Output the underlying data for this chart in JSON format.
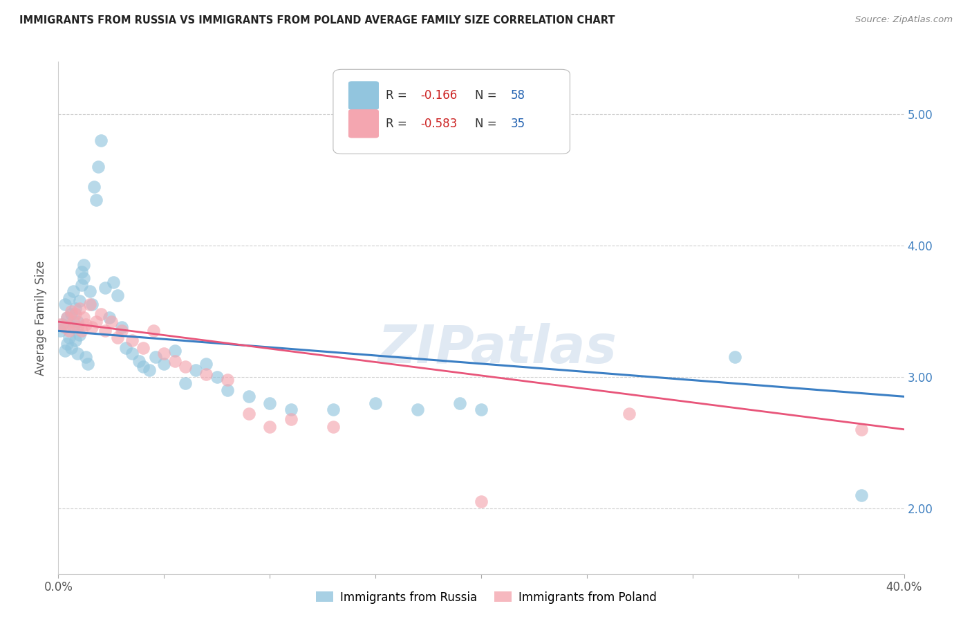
{
  "title": "IMMIGRANTS FROM RUSSIA VS IMMIGRANTS FROM POLAND AVERAGE FAMILY SIZE CORRELATION CHART",
  "source": "Source: ZipAtlas.com",
  "ylabel": "Average Family Size",
  "xlim": [
    0.0,
    0.4
  ],
  "ylim": [
    1.5,
    5.4
  ],
  "yticks": [
    2.0,
    3.0,
    4.0,
    5.0
  ],
  "xticks": [
    0.0,
    0.05,
    0.1,
    0.15,
    0.2,
    0.25,
    0.3,
    0.35,
    0.4
  ],
  "russia_R": "-0.166",
  "russia_N": "58",
  "poland_R": "-0.583",
  "poland_N": "35",
  "russia_color": "#92c5de",
  "poland_color": "#f4a6b0",
  "russia_line_color": "#3b7fc4",
  "poland_line_color": "#e8557a",
  "background_color": "#ffffff",
  "grid_color": "#d0d0d0",
  "russia_x": [
    0.001,
    0.002,
    0.003,
    0.003,
    0.004,
    0.004,
    0.005,
    0.005,
    0.006,
    0.006,
    0.007,
    0.007,
    0.008,
    0.008,
    0.009,
    0.009,
    0.01,
    0.01,
    0.011,
    0.011,
    0.012,
    0.012,
    0.013,
    0.014,
    0.015,
    0.016,
    0.017,
    0.018,
    0.019,
    0.02,
    0.022,
    0.024,
    0.026,
    0.028,
    0.03,
    0.032,
    0.035,
    0.038,
    0.04,
    0.043,
    0.046,
    0.05,
    0.055,
    0.06,
    0.065,
    0.07,
    0.075,
    0.08,
    0.09,
    0.1,
    0.11,
    0.13,
    0.15,
    0.17,
    0.19,
    0.2,
    0.32,
    0.38
  ],
  "russia_y": [
    3.35,
    3.4,
    3.2,
    3.55,
    3.25,
    3.45,
    3.3,
    3.6,
    3.22,
    3.48,
    3.38,
    3.65,
    3.28,
    3.52,
    3.18,
    3.42,
    3.32,
    3.58,
    3.8,
    3.7,
    3.75,
    3.85,
    3.15,
    3.1,
    3.65,
    3.55,
    4.45,
    4.35,
    4.6,
    4.8,
    3.68,
    3.45,
    3.72,
    3.62,
    3.38,
    3.22,
    3.18,
    3.12,
    3.08,
    3.05,
    3.15,
    3.1,
    3.2,
    2.95,
    3.05,
    3.1,
    3.0,
    2.9,
    2.85,
    2.8,
    2.75,
    2.75,
    2.8,
    2.75,
    2.8,
    2.75,
    3.15,
    2.1
  ],
  "poland_x": [
    0.001,
    0.003,
    0.004,
    0.005,
    0.006,
    0.007,
    0.008,
    0.009,
    0.01,
    0.011,
    0.012,
    0.013,
    0.015,
    0.016,
    0.018,
    0.02,
    0.022,
    0.025,
    0.028,
    0.03,
    0.035,
    0.04,
    0.045,
    0.05,
    0.055,
    0.06,
    0.07,
    0.08,
    0.09,
    0.1,
    0.11,
    0.13,
    0.2,
    0.27,
    0.38
  ],
  "poland_y": [
    3.4,
    3.38,
    3.45,
    3.35,
    3.5,
    3.42,
    3.48,
    3.38,
    3.52,
    3.35,
    3.45,
    3.4,
    3.55,
    3.38,
    3.42,
    3.48,
    3.35,
    3.42,
    3.3,
    3.35,
    3.28,
    3.22,
    3.35,
    3.18,
    3.12,
    3.08,
    3.02,
    2.98,
    2.72,
    2.62,
    2.68,
    2.62,
    2.05,
    2.72,
    2.6
  ]
}
